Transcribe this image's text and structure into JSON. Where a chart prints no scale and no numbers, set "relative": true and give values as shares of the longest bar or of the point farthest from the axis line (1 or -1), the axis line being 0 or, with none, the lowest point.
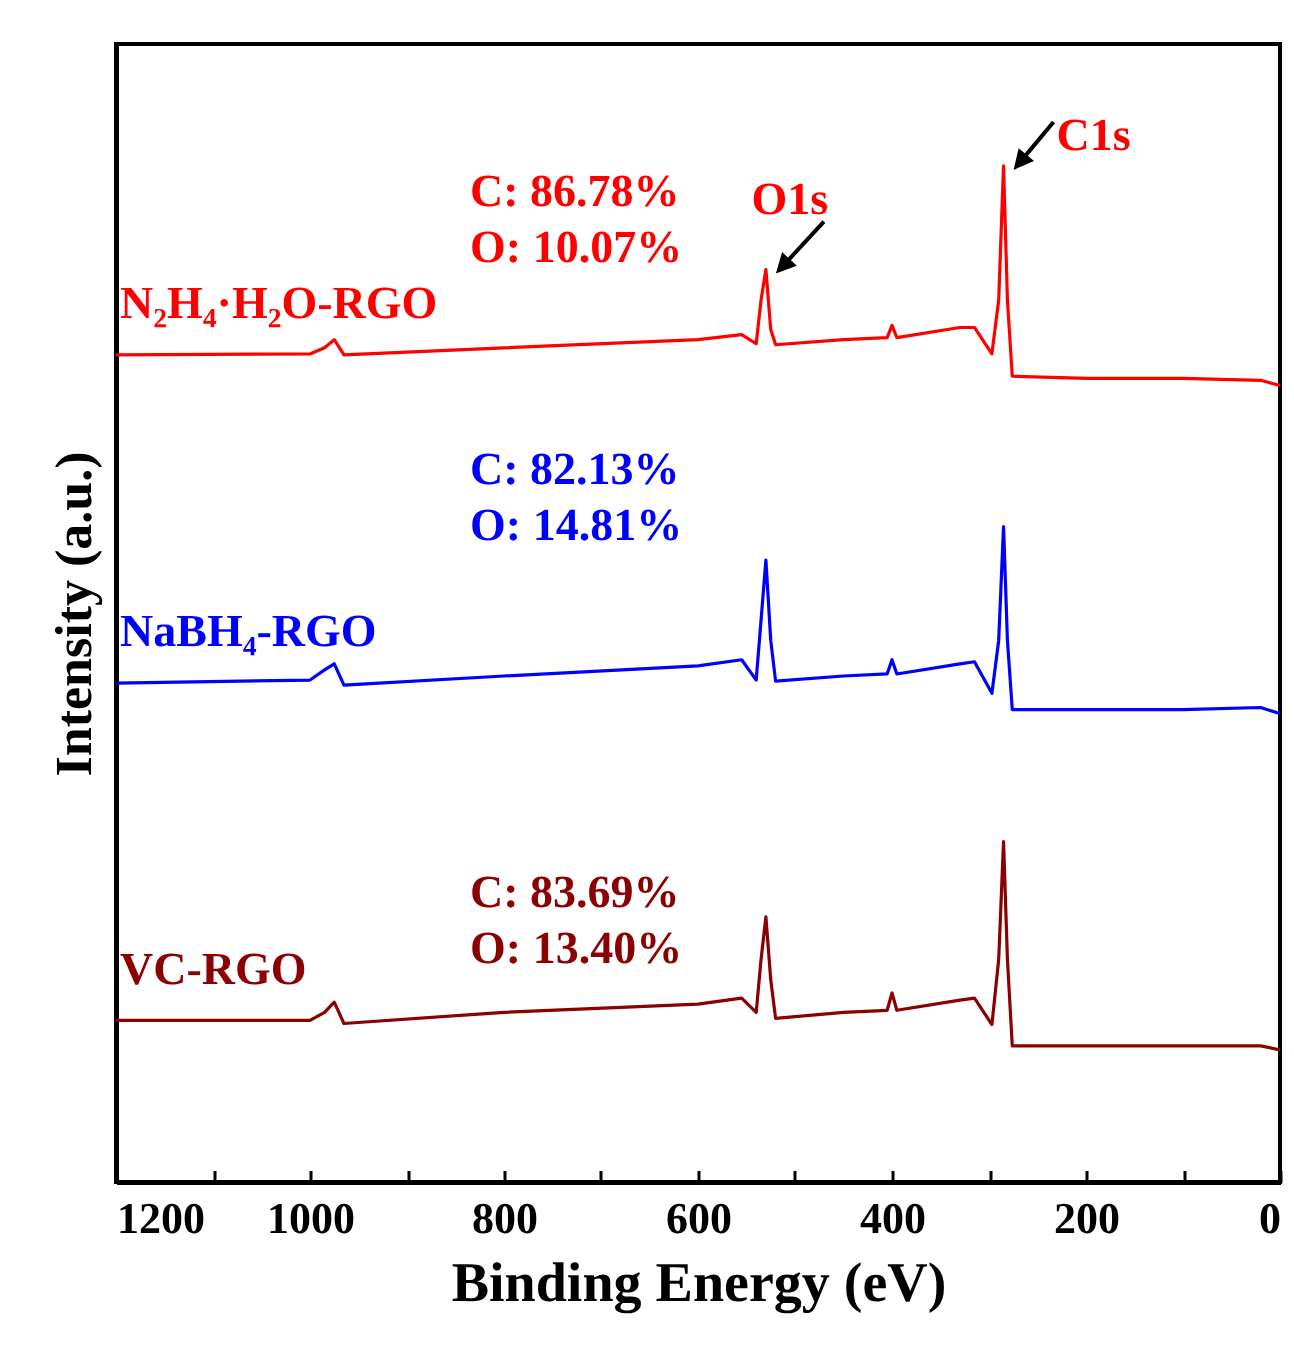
{
  "chart_data": {
    "type": "line",
    "relative": true,
    "xlabel": "Binding Energy (eV)",
    "ylabel": "Intensity (a.u.)",
    "x": [
      1200,
      1000,
      985,
      975,
      965,
      800,
      600,
      555,
      540,
      535,
      530,
      525,
      520,
      450,
      405,
      400,
      395,
      330,
      315,
      297,
      290,
      285,
      281,
      276,
      200,
      100,
      20,
      0
    ],
    "xlim": [
      1200,
      0
    ],
    "xticks": [
      1200,
      {
        "value": 1100,
        "label": null
      },
      1000,
      {
        "value": 900,
        "label": null
      },
      800,
      {
        "value": 700,
        "label": null
      },
      600,
      {
        "value": 500,
        "label": null
      },
      400,
      {
        "value": 300,
        "label": null
      },
      200,
      {
        "value": 100,
        "label": null
      },
      0
    ],
    "series": [
      {
        "name": "N₂H₄·H₂O-RGO",
        "color": "#ff0000",
        "values": [
          0.814,
          0.815,
          0.821,
          0.829,
          0.814,
          0.821,
          0.829,
          0.834,
          0.825,
          0.868,
          0.898,
          0.839,
          0.824,
          0.829,
          0.831,
          0.843,
          0.831,
          0.841,
          0.841,
          0.815,
          0.868,
          1.0,
          0.868,
          0.793,
          0.791,
          0.791,
          0.789,
          0.784
        ]
      },
      {
        "name": "NaBH₄-RGO",
        "color": "#0000ff",
        "values": [
          0.491,
          0.494,
          0.504,
          0.51,
          0.489,
          0.498,
          0.508,
          0.514,
          0.494,
          0.553,
          0.612,
          0.533,
          0.493,
          0.498,
          0.5,
          0.514,
          0.5,
          0.51,
          0.512,
          0.481,
          0.533,
          0.645,
          0.533,
          0.465,
          0.465,
          0.465,
          0.467,
          0.461
        ]
      },
      {
        "name": "VC-RGO",
        "color": "#8b0000",
        "values": [
          0.159,
          0.159,
          0.167,
          0.177,
          0.156,
          0.167,
          0.175,
          0.181,
          0.167,
          0.219,
          0.261,
          0.199,
          0.161,
          0.167,
          0.169,
          0.186,
          0.169,
          0.179,
          0.181,
          0.155,
          0.219,
          0.335,
          0.219,
          0.134,
          0.134,
          0.134,
          0.134,
          0.13
        ]
      }
    ],
    "annotations": [
      "C: 86.78%\nO: 10.07%",
      "C:  82.13%\nO: 14.81%",
      "C:  83.69%\nO: 13.40%",
      {
        "text": "O1s",
        "x": 530,
        "y": 0.898
      },
      {
        "text": "C1s",
        "x": 285,
        "y": 1.0
      }
    ],
    "line_style": "solid",
    "marker": "none",
    "grid": false,
    "legend": false
  }
}
